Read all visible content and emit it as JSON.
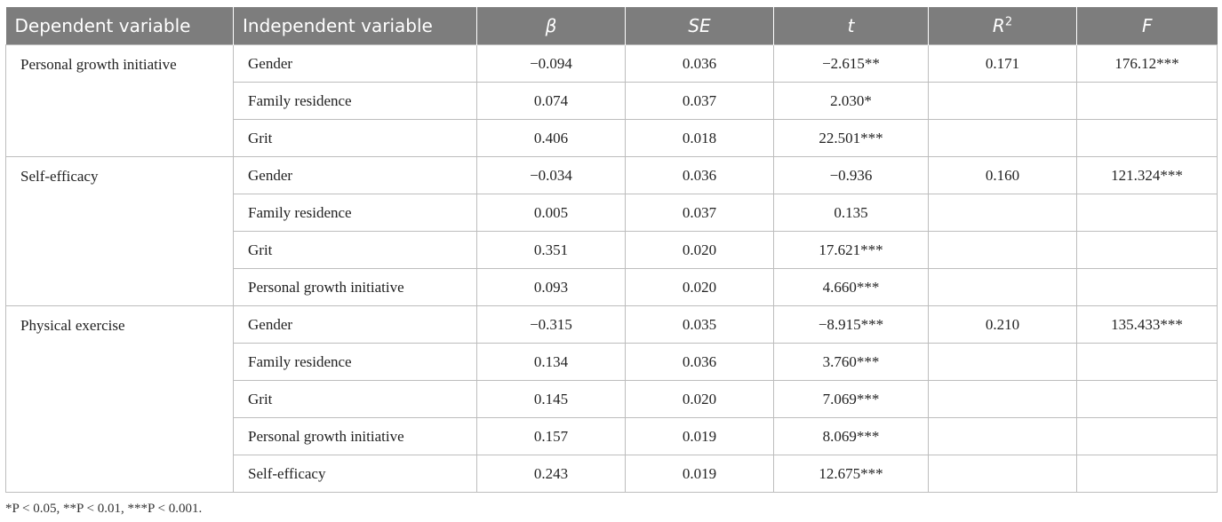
{
  "headers": {
    "dep": "Dependent variable",
    "ind": "Independent variable",
    "beta": "β",
    "se": "SE",
    "t": "t",
    "r2": "R",
    "r2_sup": "2",
    "f": "F"
  },
  "groups": [
    {
      "dependent": "Personal growth initiative",
      "r2": "0.171",
      "f": "176.12***",
      "rows": [
        {
          "ind": "Gender",
          "beta": "−0.094",
          "se": "0.036",
          "t": "−2.615**"
        },
        {
          "ind": "Family residence",
          "beta": "0.074",
          "se": "0.037",
          "t": "2.030*"
        },
        {
          "ind": "Grit",
          "beta": "0.406",
          "se": "0.018",
          "t": "22.501***"
        }
      ]
    },
    {
      "dependent": "Self-efficacy",
      "r2": "0.160",
      "f": "121.324***",
      "rows": [
        {
          "ind": "Gender",
          "beta": "−0.034",
          "se": "0.036",
          "t": "−0.936"
        },
        {
          "ind": "Family residence",
          "beta": "0.005",
          "se": "0.037",
          "t": "0.135"
        },
        {
          "ind": "Grit",
          "beta": "0.351",
          "se": "0.020",
          "t": "17.621***"
        },
        {
          "ind": "Personal growth initiative",
          "beta": "0.093",
          "se": "0.020",
          "t": "4.660***"
        }
      ]
    },
    {
      "dependent": "Physical exercise",
      "r2": "0.210",
      "f": "135.433***",
      "rows": [
        {
          "ind": "Gender",
          "beta": "−0.315",
          "se": "0.035",
          "t": "−8.915***"
        },
        {
          "ind": "Family residence",
          "beta": "0.134",
          "se": "0.036",
          "t": "3.760***"
        },
        {
          "ind": "Grit",
          "beta": "0.145",
          "se": "0.020",
          "t": "7.069***"
        },
        {
          "ind": "Personal growth initiative",
          "beta": "0.157",
          "se": "0.019",
          "t": "8.069***"
        },
        {
          "ind": "Self-efficacy",
          "beta": "0.243",
          "se": "0.019",
          "t": "12.675***"
        }
      ]
    }
  ],
  "footnote": "*P < 0.05, **P < 0.01, ***P < 0.001."
}
